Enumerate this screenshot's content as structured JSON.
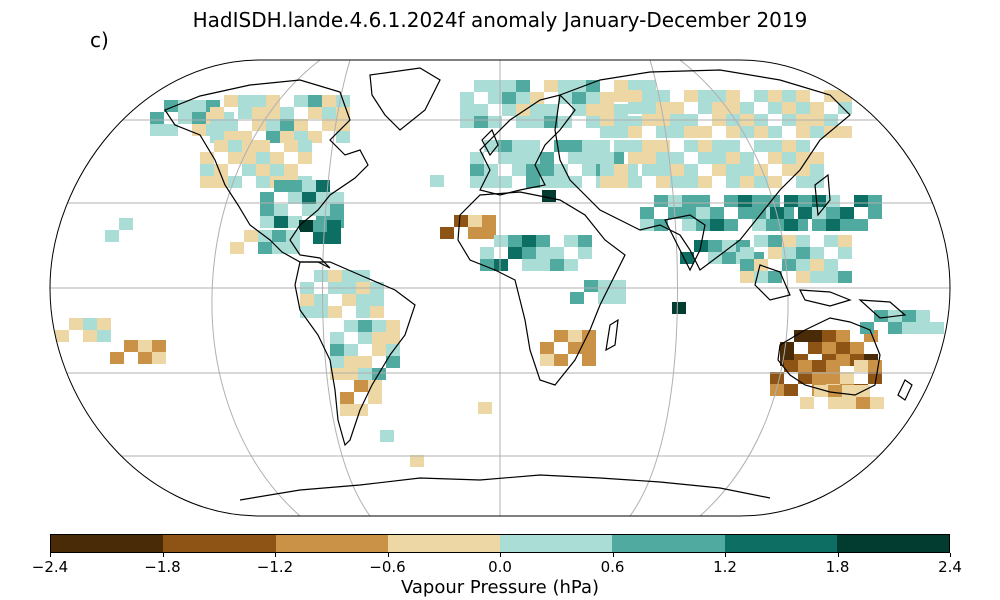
{
  "title": "HadISDH.lande.4.6.1.2024f anomaly January-December 2019",
  "panel_label": "c)",
  "colorbar": {
    "label": "Vapour Pressure (hPa)",
    "ticks": [
      "−2.4",
      "−1.8",
      "−1.2",
      "−0.6",
      "0.0",
      "0.6",
      "1.2",
      "1.8",
      "2.4"
    ],
    "colors": [
      "#4a2b07",
      "#8e5415",
      "#c99247",
      "#ecd7a5",
      "#aaddd6",
      "#50aa9f",
      "#0d6f64",
      "#023b30"
    ]
  },
  "map": {
    "projection": "Robinson",
    "graticule": true
  }
}
